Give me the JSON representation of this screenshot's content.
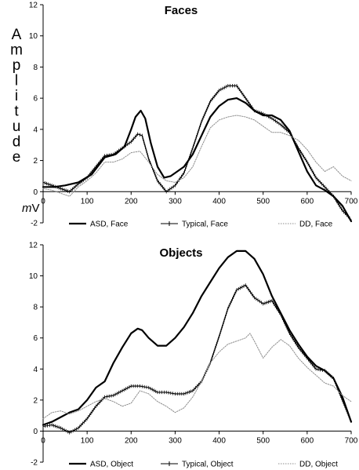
{
  "chart_data": [
    {
      "type": "line",
      "title": "Faces",
      "ylabel": "Amplitude",
      "yunit_italic": "m",
      "yunit": "V",
      "xlim": [
        0,
        700
      ],
      "ylim": [
        -2,
        12
      ],
      "xticks": [
        0,
        100,
        200,
        300,
        400,
        500,
        600,
        700
      ],
      "yticks": [
        -2,
        0,
        2,
        4,
        6,
        8,
        10,
        12
      ],
      "grid": false,
      "legend_position": "bottom",
      "series": [
        {
          "name": "ASD, Face",
          "style": "solid-thick",
          "color": "#000000",
          "x": [
            0,
            25,
            50,
            80,
            110,
            140,
            165,
            185,
            200,
            210,
            222,
            232,
            245,
            260,
            275,
            290,
            305,
            320,
            340,
            360,
            380,
            400,
            420,
            440,
            460,
            480,
            500,
            520,
            540,
            560,
            580,
            600,
            620,
            640,
            660,
            680,
            700
          ],
          "y": [
            0.3,
            0.3,
            0.4,
            0.6,
            1.1,
            2.2,
            2.4,
            2.9,
            4.0,
            4.8,
            5.2,
            4.7,
            3.1,
            1.6,
            0.9,
            1.0,
            1.3,
            1.6,
            2.4,
            3.6,
            4.8,
            5.5,
            5.9,
            6.0,
            5.7,
            5.2,
            4.9,
            4.9,
            4.6,
            3.9,
            2.6,
            1.3,
            0.4,
            0.1,
            -0.3,
            -0.9,
            -1.9
          ]
        },
        {
          "name": "Typical, Face",
          "style": "solid-markers",
          "color": "#000000",
          "x": [
            0,
            20,
            40,
            60,
            80,
            100,
            120,
            140,
            160,
            180,
            200,
            215,
            225,
            240,
            260,
            280,
            300,
            320,
            340,
            360,
            380,
            400,
            420,
            440,
            460,
            480,
            500,
            520,
            540,
            560,
            580,
            600,
            620,
            640,
            660,
            680,
            700
          ],
          "y": [
            0.6,
            0.4,
            0.2,
            0.0,
            0.5,
            0.9,
            1.6,
            2.3,
            2.4,
            2.8,
            3.2,
            3.7,
            3.6,
            2.1,
            0.7,
            0.0,
            0.4,
            1.2,
            2.8,
            4.5,
            5.8,
            6.5,
            6.8,
            6.8,
            6.0,
            5.2,
            5.0,
            4.7,
            4.3,
            3.8,
            2.8,
            1.9,
            0.9,
            0.3,
            -0.3,
            -1.2,
            -1.8
          ]
        },
        {
          "name": "DD, Face",
          "style": "dotted-thin",
          "color": "#8c8c8c",
          "x": [
            0,
            20,
            40,
            60,
            80,
            100,
            120,
            140,
            160,
            180,
            200,
            220,
            240,
            260,
            280,
            300,
            320,
            340,
            360,
            380,
            400,
            420,
            440,
            460,
            480,
            500,
            520,
            540,
            560,
            580,
            600,
            620,
            640,
            660,
            680,
            700
          ],
          "y": [
            0.2,
            0.1,
            -0.1,
            -0.3,
            0.3,
            0.7,
            1.2,
            1.9,
            1.9,
            2.1,
            2.5,
            2.6,
            1.9,
            1.1,
            0.7,
            0.6,
            0.9,
            1.6,
            2.9,
            4.1,
            4.6,
            4.8,
            4.9,
            4.8,
            4.6,
            4.2,
            3.8,
            3.8,
            3.6,
            3.3,
            2.7,
            1.9,
            1.3,
            1.6,
            1.0,
            0.7
          ]
        }
      ]
    },
    {
      "type": "line",
      "title": "Objects",
      "xlim": [
        0,
        700
      ],
      "ylim": [
        -2,
        12
      ],
      "xticks": [
        0,
        100,
        200,
        300,
        400,
        500,
        600,
        700
      ],
      "yticks": [
        -2,
        0,
        2,
        4,
        6,
        8,
        10,
        12
      ],
      "grid": false,
      "legend_position": "bottom",
      "series": [
        {
          "name": "ASD, Object",
          "style": "solid-thick",
          "color": "#000000",
          "x": [
            0,
            20,
            40,
            60,
            80,
            100,
            120,
            140,
            160,
            180,
            200,
            215,
            225,
            240,
            260,
            280,
            300,
            320,
            340,
            360,
            380,
            400,
            420,
            440,
            460,
            480,
            500,
            520,
            540,
            560,
            580,
            600,
            620,
            640,
            660,
            680,
            700
          ],
          "y": [
            0.4,
            0.6,
            0.9,
            1.2,
            1.4,
            2.0,
            2.8,
            3.2,
            4.4,
            5.4,
            6.3,
            6.6,
            6.5,
            6.0,
            5.5,
            5.5,
            6.0,
            6.7,
            7.6,
            8.7,
            9.6,
            10.5,
            11.2,
            11.6,
            11.6,
            11.1,
            10.1,
            8.7,
            7.6,
            6.5,
            5.6,
            4.8,
            4.2,
            3.9,
            3.4,
            2.2,
            0.6
          ]
        },
        {
          "name": "Typical, Object",
          "style": "solid-markers",
          "color": "#000000",
          "x": [
            0,
            20,
            40,
            60,
            80,
            100,
            120,
            140,
            160,
            180,
            200,
            220,
            240,
            260,
            280,
            300,
            320,
            340,
            360,
            380,
            400,
            420,
            440,
            460,
            480,
            500,
            520,
            540,
            560,
            580,
            600,
            620,
            640,
            660,
            680,
            700
          ],
          "y": [
            0.3,
            0.4,
            0.2,
            -0.1,
            0.2,
            0.8,
            1.6,
            2.2,
            2.3,
            2.6,
            2.9,
            2.9,
            2.8,
            2.5,
            2.5,
            2.4,
            2.4,
            2.6,
            3.2,
            4.4,
            6.1,
            7.9,
            9.1,
            9.4,
            8.6,
            8.2,
            8.4,
            7.5,
            6.3,
            5.4,
            4.7,
            4.0,
            3.9,
            3.4,
            2.0,
            0.6
          ]
        },
        {
          "name": "DD, Object",
          "style": "dotted-thin",
          "color": "#8c8c8c",
          "x": [
            0,
            20,
            40,
            60,
            80,
            100,
            120,
            140,
            160,
            180,
            200,
            220,
            240,
            260,
            280,
            300,
            320,
            340,
            360,
            380,
            400,
            420,
            440,
            460,
            470,
            480,
            500,
            520,
            540,
            560,
            580,
            600,
            620,
            640,
            660,
            680,
            700
          ],
          "y": [
            0.8,
            1.2,
            1.3,
            1.1,
            1.3,
            1.6,
            1.9,
            2.1,
            1.9,
            1.6,
            1.8,
            2.6,
            2.4,
            1.9,
            1.6,
            1.2,
            1.5,
            2.2,
            3.2,
            4.4,
            5.1,
            5.6,
            5.8,
            6.0,
            6.3,
            5.8,
            4.7,
            5.4,
            5.9,
            5.5,
            4.7,
            4.1,
            3.6,
            3.1,
            2.9,
            2.3,
            1.9
          ]
        }
      ]
    }
  ]
}
